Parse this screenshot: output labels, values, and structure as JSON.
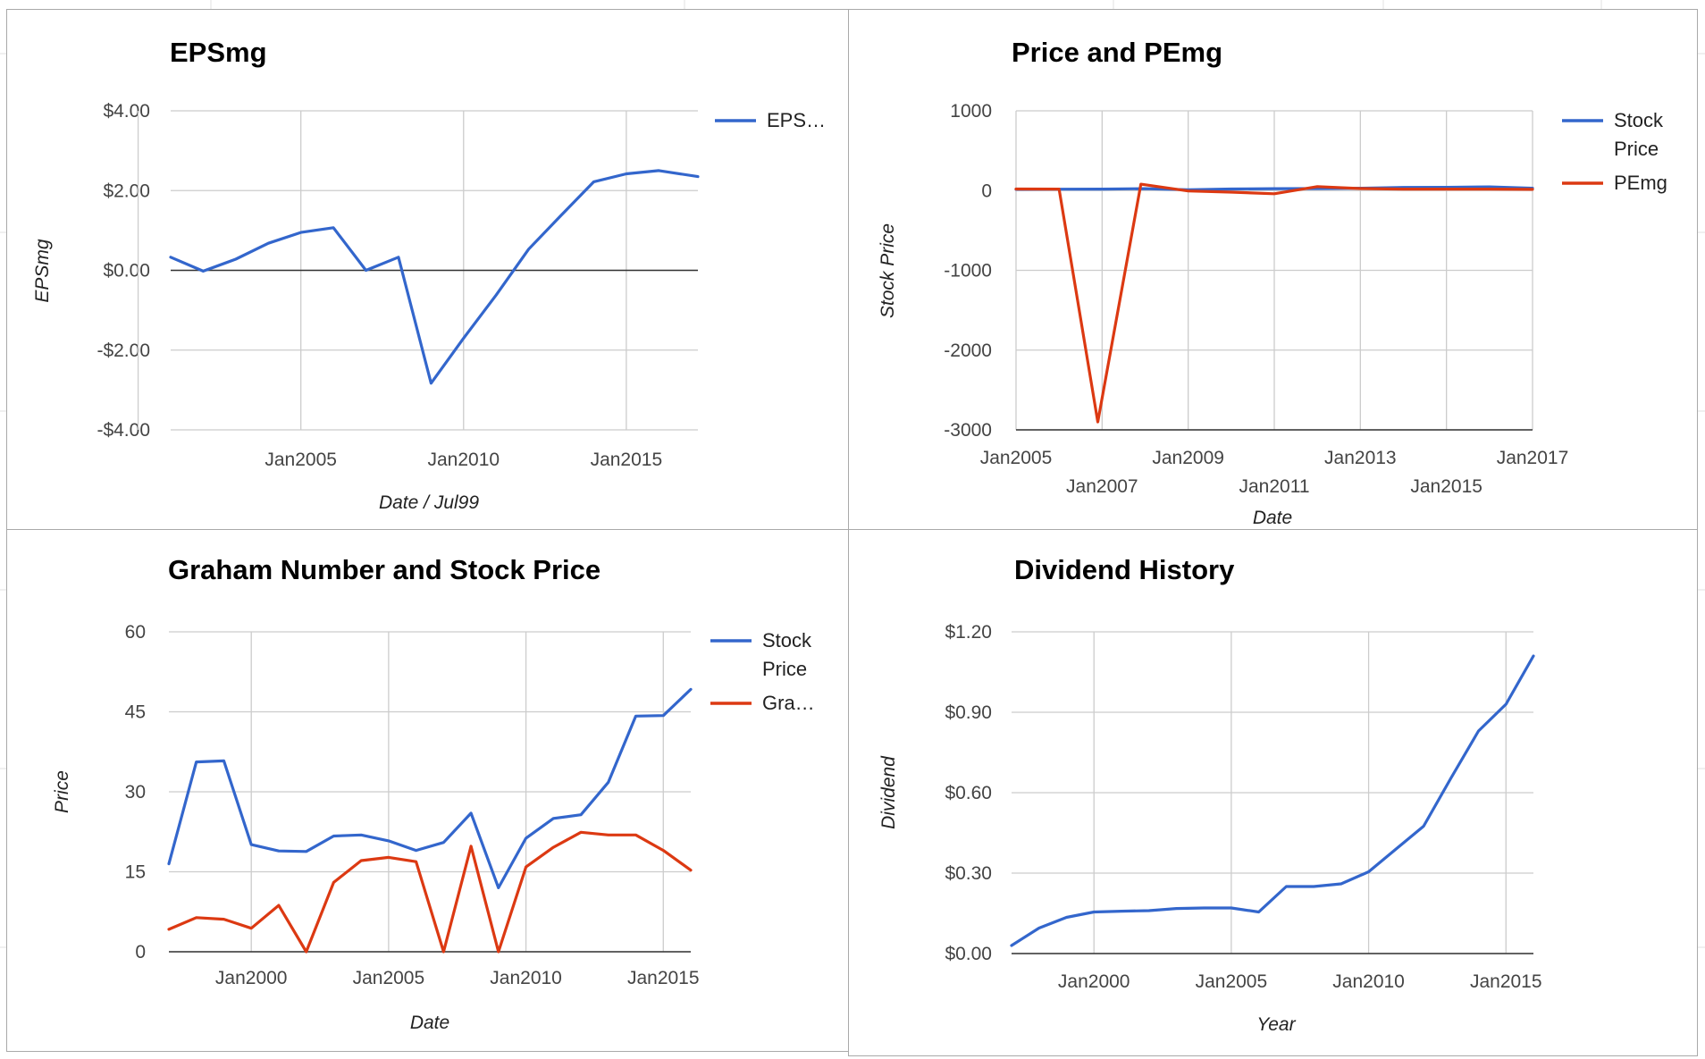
{
  "colors": {
    "blue": "#3366cc",
    "red": "#dc3912",
    "grid": "#cccccc",
    "baseline": "#333333"
  },
  "chart_data": [
    {
      "type": "line",
      "title": "EPSmg",
      "xlabel": "Date / Jul99",
      "ylabel": "EPSmg",
      "x_ticks": [
        "Jan2005",
        "Jan2010",
        "Jan2015"
      ],
      "y_ticks": [
        "$4.00",
        "$2.00",
        "$0.00",
        "-$2.00",
        "-$4.00"
      ],
      "ylim": [
        -4,
        4
      ],
      "xlim": [
        2001,
        2017.2
      ],
      "grid": true,
      "legend_position": "right",
      "series": [
        {
          "name": "EPS…",
          "color": "#3366cc",
          "x": [
            2001,
            2002,
            2003,
            2004,
            2005,
            2006,
            2007,
            2008,
            2009,
            2010,
            2011,
            2012,
            2013,
            2014,
            2015,
            2016,
            2017.2
          ],
          "y": [
            0.33,
            -0.02,
            0.28,
            0.68,
            0.95,
            1.07,
            0.0,
            0.33,
            -2.83,
            -1.7,
            -0.62,
            0.53,
            1.38,
            2.22,
            2.42,
            2.5,
            2.35
          ]
        }
      ]
    },
    {
      "type": "line",
      "title": "Price and PEmg",
      "xlabel": "Date",
      "ylabel": "Stock Price",
      "x_ticks": [
        "Jan2005",
        "Jan2007",
        "Jan2009",
        "Jan2011",
        "Jan2013",
        "Jan2015",
        "Jan2017"
      ],
      "y_ticks": [
        "1000",
        "0",
        "-1000",
        "-2000",
        "-3000"
      ],
      "ylim": [
        -3000,
        1000
      ],
      "xlim": [
        2005,
        2017
      ],
      "grid": true,
      "legend_position": "right",
      "series": [
        {
          "name": "Stock Price",
          "color": "#3366cc",
          "x": [
            2005,
            2006,
            2007,
            2008,
            2009,
            2010,
            2011,
            2012,
            2013,
            2014,
            2015,
            2016,
            2017
          ],
          "y": [
            15,
            17,
            19,
            24,
            11,
            20,
            24,
            25,
            30,
            40,
            41,
            46,
            30
          ]
        },
        {
          "name": "PEmg",
          "color": "#dc3912",
          "x": [
            2005,
            2006,
            2006.9,
            2007.9,
            2009,
            2010,
            2011,
            2012,
            2013,
            2014,
            2015,
            2016,
            2017
          ],
          "y": [
            20,
            18,
            -2900,
            80,
            -5,
            -20,
            -40,
            50,
            25,
            18,
            18,
            18,
            15
          ]
        }
      ]
    },
    {
      "type": "line",
      "title": "Graham Number and Stock Price",
      "xlabel": "Date",
      "ylabel": "Price",
      "x_ticks": [
        "Jan2000",
        "Jan2005",
        "Jan2010",
        "Jan2015"
      ],
      "y_ticks": [
        "60",
        "45",
        "30",
        "15",
        "0"
      ],
      "ylim": [
        0,
        60
      ],
      "xlim": [
        1997,
        2016
      ],
      "grid": true,
      "legend_position": "right",
      "series": [
        {
          "name": "Stock Price",
          "color": "#3366cc",
          "x": [
            1997,
            1998,
            1999,
            2000,
            2001,
            2002,
            2003,
            2004,
            2005,
            2006,
            2007,
            2008,
            2009,
            2010,
            2011,
            2012,
            2013,
            2014,
            2015,
            2016
          ],
          "y": [
            16.5,
            35.6,
            35.8,
            20.1,
            18.9,
            18.8,
            21.7,
            21.9,
            20.8,
            19,
            20.5,
            26,
            12,
            21.3,
            25,
            25.7,
            31.8,
            44.2,
            44.3,
            49.2
          ]
        },
        {
          "name": "Gra…",
          "color": "#dc3912",
          "x": [
            1997,
            1998,
            1999,
            2000,
            2001,
            2002,
            2003,
            2004,
            2005,
            2006,
            2007,
            2008,
            2009,
            2010,
            2011,
            2012,
            2013,
            2014,
            2015,
            2016
          ],
          "y": [
            4.2,
            6.4,
            6.1,
            4.4,
            8.7,
            0,
            13,
            17.1,
            17.7,
            16.9,
            0,
            19.8,
            0,
            15.9,
            19.6,
            22.4,
            21.9,
            21.9,
            19,
            15.3
          ]
        }
      ]
    },
    {
      "type": "line",
      "title": "Dividend History",
      "xlabel": "Year",
      "ylabel": "Dividend",
      "x_ticks": [
        "Jan2000",
        "Jan2005",
        "Jan2010",
        "Jan2015"
      ],
      "y_ticks": [
        "$1.20",
        "$0.90",
        "$0.60",
        "$0.30",
        "$0.00"
      ],
      "ylim": [
        0,
        1.2
      ],
      "xlim": [
        1997,
        2016
      ],
      "grid": true,
      "legend_position": "none",
      "series": [
        {
          "name": "",
          "color": "#3366cc",
          "x": [
            1997,
            1998,
            1999,
            2000,
            2001,
            2002,
            2003,
            2004,
            2005,
            2006,
            2007,
            2008,
            2009,
            2010,
            2011,
            2012,
            2013,
            2014,
            2015,
            2016
          ],
          "y": [
            0.03,
            0.095,
            0.135,
            0.155,
            0.158,
            0.16,
            0.168,
            0.17,
            0.17,
            0.155,
            0.25,
            0.25,
            0.26,
            0.305,
            0.39,
            0.475,
            0.655,
            0.83,
            0.93,
            1.11
          ]
        }
      ]
    }
  ]
}
